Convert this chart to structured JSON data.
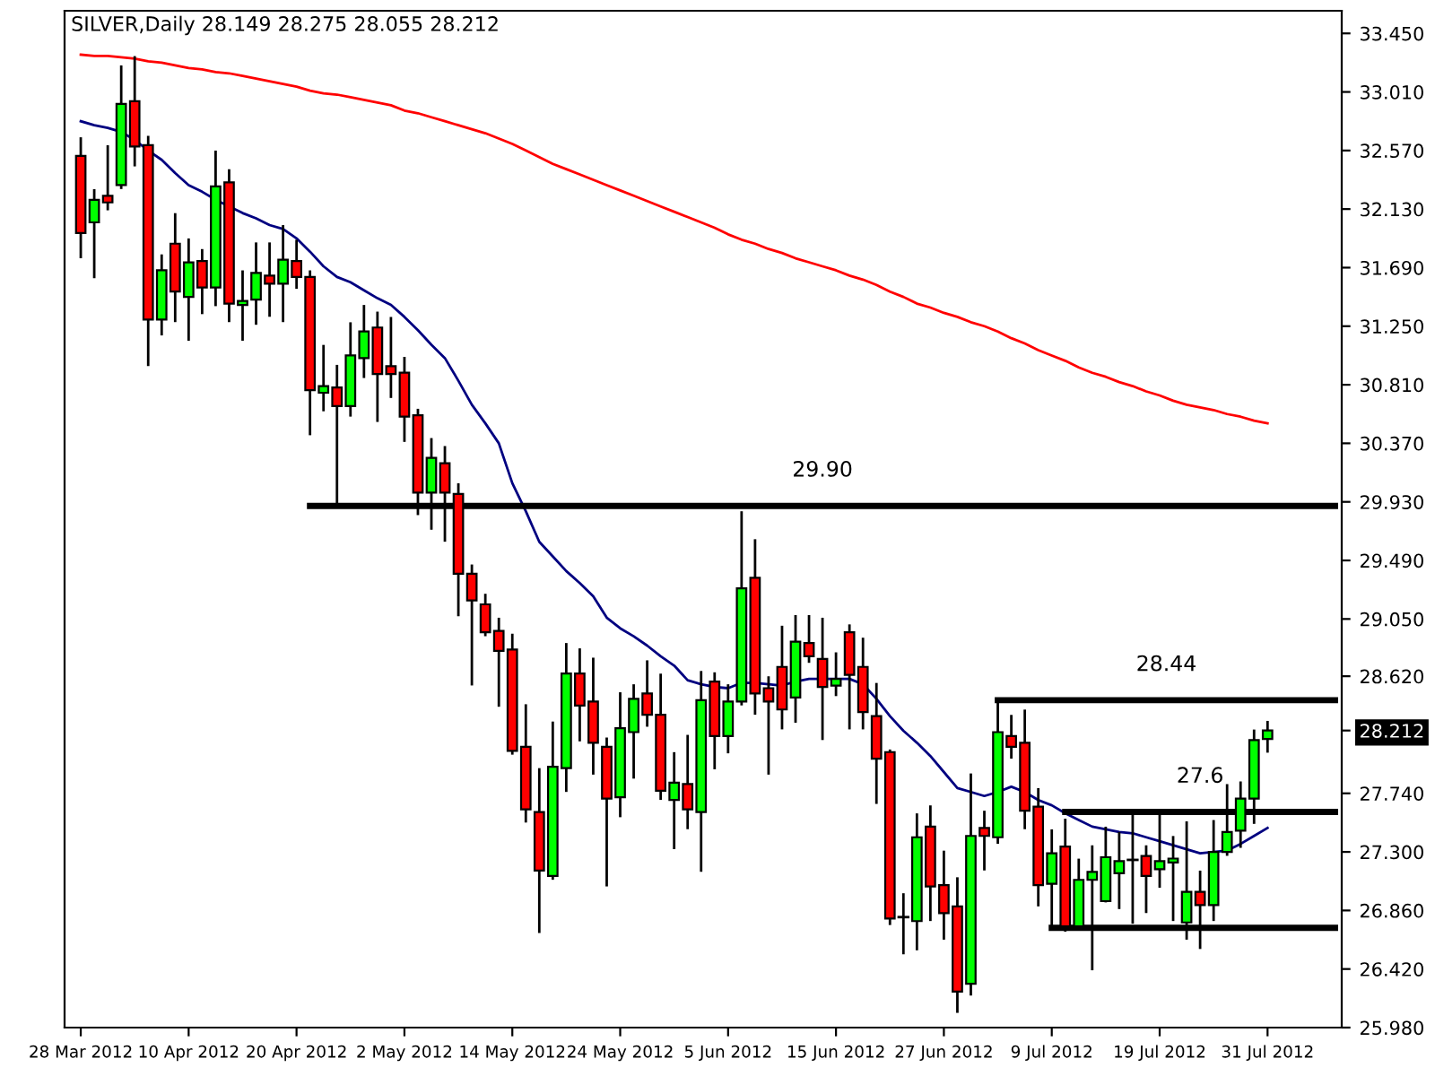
{
  "chart_data": {
    "type": "candlestick",
    "title": "SILVER,Daily 28.149 28.275 28.055 28.212",
    "categories": [
      "28 Mar 2012",
      null,
      null,
      null,
      null,
      null,
      null,
      null,
      "10 Apr 2012",
      null,
      null,
      null,
      null,
      null,
      null,
      null,
      "20 Apr 2012",
      null,
      null,
      null,
      null,
      null,
      null,
      null,
      "2 May 2012",
      null,
      null,
      null,
      null,
      null,
      null,
      null,
      "14 May 2012",
      null,
      null,
      null,
      null,
      null,
      null,
      null,
      "24 May 2012",
      null,
      null,
      null,
      null,
      null,
      null,
      null,
      "5 Jun 2012",
      null,
      null,
      null,
      null,
      null,
      null,
      null,
      "15 Jun 2012",
      null,
      null,
      null,
      null,
      null,
      null,
      null,
      "27 Jun 2012",
      null,
      null,
      null,
      null,
      null,
      null,
      null,
      "9 Jul 2012",
      null,
      null,
      null,
      null,
      null,
      null,
      null,
      "19 Jul 2012",
      null,
      null,
      null,
      null,
      null,
      null,
      null,
      "31 Jul 2012",
      null,
      null,
      null,
      null,
      null
    ],
    "ohlc": [
      [
        32.53,
        32.66,
        31.77,
        31.95
      ],
      [
        32.03,
        32.27,
        31.62,
        32.2
      ],
      [
        32.23,
        32.6,
        32.13,
        32.18
      ],
      [
        32.31,
        33.2,
        32.29,
        32.92
      ],
      [
        32.94,
        33.27,
        32.46,
        32.6
      ],
      [
        32.61,
        32.67,
        30.96,
        31.3
      ],
      [
        31.3,
        31.78,
        31.19,
        31.67
      ],
      [
        31.87,
        32.09,
        31.29,
        31.51
      ],
      [
        31.47,
        31.9,
        31.15,
        31.73
      ],
      [
        31.74,
        31.82,
        31.35,
        31.54
      ],
      [
        31.54,
        32.56,
        31.41,
        32.3
      ],
      [
        32.33,
        32.42,
        31.29,
        31.42
      ],
      [
        31.41,
        31.66,
        31.15,
        31.44
      ],
      [
        31.45,
        31.87,
        31.27,
        31.65
      ],
      [
        31.63,
        31.87,
        31.33,
        31.57
      ],
      [
        31.57,
        32.0,
        31.29,
        31.75
      ],
      [
        31.74,
        31.89,
        31.54,
        31.62
      ],
      [
        31.62,
        31.66,
        30.44,
        30.77
      ],
      [
        30.75,
        31.1,
        30.62,
        30.8
      ],
      [
        30.79,
        30.95,
        29.92,
        30.65
      ],
      [
        30.65,
        31.27,
        30.58,
        31.03
      ],
      [
        31.01,
        31.4,
        30.87,
        31.21
      ],
      [
        31.24,
        31.35,
        30.54,
        30.89
      ],
      [
        30.95,
        31.31,
        30.72,
        30.89
      ],
      [
        30.9,
        31.01,
        30.39,
        30.57
      ],
      [
        30.58,
        30.62,
        29.84,
        30.0
      ],
      [
        30.0,
        30.4,
        29.73,
        30.26
      ],
      [
        30.22,
        30.34,
        29.64,
        30.0
      ],
      [
        29.99,
        30.06,
        29.08,
        29.39
      ],
      [
        29.39,
        29.45,
        28.56,
        29.19
      ],
      [
        29.16,
        29.23,
        28.93,
        28.95
      ],
      [
        28.96,
        29.05,
        28.4,
        28.81
      ],
      [
        28.82,
        28.93,
        28.04,
        28.06
      ],
      [
        28.09,
        28.4,
        27.53,
        27.62
      ],
      [
        27.6,
        27.92,
        26.7,
        27.16
      ],
      [
        27.12,
        28.27,
        27.1,
        27.94
      ],
      [
        27.93,
        28.86,
        27.76,
        28.64
      ],
      [
        28.64,
        28.82,
        28.14,
        28.4
      ],
      [
        28.43,
        28.75,
        27.89,
        28.12
      ],
      [
        28.09,
        28.15,
        27.05,
        27.7
      ],
      [
        27.71,
        28.49,
        27.57,
        28.23
      ],
      [
        28.2,
        28.55,
        27.86,
        28.45
      ],
      [
        28.49,
        28.73,
        28.25,
        28.33
      ],
      [
        28.33,
        28.63,
        27.7,
        27.76
      ],
      [
        27.69,
        28.04,
        27.33,
        27.82
      ],
      [
        27.81,
        28.17,
        27.48,
        27.62
      ],
      [
        27.6,
        28.65,
        27.16,
        28.44
      ],
      [
        28.58,
        28.64,
        27.93,
        28.17
      ],
      [
        28.17,
        28.55,
        28.05,
        28.43
      ],
      [
        28.43,
        29.85,
        28.41,
        29.28
      ],
      [
        29.36,
        29.64,
        28.34,
        28.49
      ],
      [
        28.53,
        28.61,
        27.89,
        28.43
      ],
      [
        28.69,
        28.99,
        28.23,
        28.37
      ],
      [
        28.46,
        29.07,
        28.28,
        28.88
      ],
      [
        28.87,
        29.07,
        28.73,
        28.77
      ],
      [
        28.75,
        29.05,
        28.15,
        28.54
      ],
      [
        28.55,
        28.79,
        28.48,
        28.6
      ],
      [
        28.95,
        29.0,
        28.23,
        28.63
      ],
      [
        28.69,
        28.9,
        28.23,
        28.35
      ],
      [
        28.32,
        28.56,
        27.67,
        28.0
      ],
      [
        28.05,
        28.06,
        26.76,
        26.8
      ],
      [
        26.81,
        26.98,
        26.54,
        26.81
      ],
      [
        26.78,
        27.58,
        26.57,
        27.41
      ],
      [
        27.49,
        27.64,
        26.79,
        27.04
      ],
      [
        27.05,
        27.3,
        26.65,
        26.84
      ],
      [
        26.89,
        27.1,
        26.1,
        26.25
      ],
      [
        26.31,
        27.88,
        26.23,
        27.42
      ],
      [
        27.48,
        27.6,
        27.17,
        27.42
      ],
      [
        27.41,
        28.43,
        27.37,
        28.2
      ],
      [
        28.17,
        28.32,
        28.01,
        28.09
      ],
      [
        28.12,
        28.36,
        27.48,
        27.61
      ],
      [
        27.64,
        27.77,
        26.9,
        27.05
      ],
      [
        27.06,
        27.46,
        26.74,
        27.29
      ],
      [
        27.34,
        27.54,
        26.71,
        26.74
      ],
      [
        26.74,
        27.24,
        26.74,
        27.09
      ],
      [
        27.09,
        27.34,
        26.42,
        27.15
      ],
      [
        26.93,
        27.48,
        26.93,
        27.26
      ],
      [
        27.14,
        27.44,
        26.88,
        27.23
      ],
      [
        27.24,
        27.59,
        26.77,
        27.24
      ],
      [
        27.27,
        27.34,
        26.85,
        27.12
      ],
      [
        27.17,
        27.57,
        27.04,
        27.23
      ],
      [
        27.22,
        27.41,
        26.79,
        27.25
      ],
      [
        26.77,
        27.52,
        26.65,
        27.0
      ],
      [
        27.0,
        27.15,
        26.58,
        26.9
      ],
      [
        26.9,
        27.53,
        26.79,
        27.3
      ],
      [
        27.3,
        27.8,
        27.28,
        27.45
      ],
      [
        27.46,
        27.82,
        27.34,
        27.7
      ],
      [
        27.7,
        28.21,
        27.52,
        28.14
      ],
      [
        28.149,
        28.275,
        28.055,
        28.212
      ],
      null,
      null,
      null,
      null,
      null
    ],
    "colors": [
      "#ff0000",
      "#00ff00",
      "#ff0000",
      "#00ff00",
      "#ff0000",
      "#ff0000",
      "#00ff00",
      "#ff0000",
      "#00ff00",
      "#ff0000",
      "#00ff00",
      "#ff0000",
      "#00ff00",
      "#00ff00",
      "#ff0000",
      "#00ff00",
      "#ff0000",
      "#ff0000",
      "#00ff00",
      "#ff0000",
      "#00ff00",
      "#00ff00",
      "#ff0000",
      "#ff0000",
      "#ff0000",
      "#ff0000",
      "#00ff00",
      "#ff0000",
      "#ff0000",
      "#ff0000",
      "#ff0000",
      "#ff0000",
      "#ff0000",
      "#ff0000",
      "#ff0000",
      "#00ff00",
      "#00ff00",
      "#ff0000",
      "#ff0000",
      "#ff0000",
      "#00ff00",
      "#00ff00",
      "#ff0000",
      "#ff0000",
      "#00ff00",
      "#ff0000",
      "#00ff00",
      "#ff0000",
      "#00ff00",
      "#00ff00",
      "#ff0000",
      "#ff0000",
      "#ff0000",
      "#00ff00",
      "#ff0000",
      "#ff0000",
      "#00ff00",
      "#ff0000",
      "#ff0000",
      "#ff0000",
      "#ff0000",
      "#000000",
      "#00ff00",
      "#ff0000",
      "#ff0000",
      "#ff0000",
      "#00ff00",
      "#ff0000",
      "#00ff00",
      "#ff0000",
      "#ff0000",
      "#ff0000",
      "#00ff00",
      "#ff0000",
      "#00ff00",
      "#00ff00",
      "#00ff00",
      "#00ff00",
      "#000000",
      "#ff0000",
      "#00ff00",
      "#00ff00",
      "#00ff00",
      "#ff0000",
      "#00ff00",
      "#00ff00",
      "#00ff00",
      "#00ff00",
      "#00ff00",
      null,
      null,
      null,
      null,
      null
    ],
    "series": [
      {
        "type": "line",
        "color": "#ff0000",
        "values": [
          33.29,
          33.28,
          33.28,
          33.27,
          33.26,
          33.24,
          33.23,
          33.21,
          33.19,
          33.18,
          33.16,
          33.15,
          33.13,
          33.11,
          33.09,
          33.07,
          33.05,
          33.02,
          33.0,
          32.99,
          32.97,
          32.95,
          32.93,
          32.91,
          32.87,
          32.85,
          32.82,
          32.79,
          32.76,
          32.73,
          32.7,
          32.66,
          32.62,
          32.57,
          32.52,
          32.47,
          32.43,
          32.39,
          32.35,
          32.31,
          32.27,
          32.23,
          32.19,
          32.15,
          32.11,
          32.07,
          32.03,
          31.99,
          31.94,
          31.9,
          31.87,
          31.83,
          31.8,
          31.76,
          31.73,
          31.7,
          31.67,
          31.63,
          31.6,
          31.56,
          31.51,
          31.47,
          31.42,
          31.39,
          31.35,
          31.32,
          31.28,
          31.25,
          31.21,
          31.16,
          31.12,
          31.07,
          31.03,
          30.99,
          30.94,
          30.9,
          30.87,
          30.83,
          30.8,
          30.76,
          30.73,
          30.69,
          30.66,
          30.64,
          30.62,
          30.59,
          30.57,
          30.54,
          30.52,
          null,
          null,
          null,
          null,
          null
        ]
      },
      {
        "type": "line",
        "color": "#000080",
        "values": [
          32.79,
          32.76,
          32.74,
          32.71,
          32.65,
          32.57,
          32.5,
          32.4,
          32.31,
          32.26,
          32.2,
          32.15,
          32.1,
          32.06,
          32.01,
          31.98,
          31.91,
          31.81,
          31.7,
          31.62,
          31.58,
          31.52,
          31.46,
          31.41,
          31.32,
          31.22,
          31.11,
          31.01,
          30.84,
          30.66,
          30.52,
          30.37,
          30.07,
          29.86,
          29.63,
          29.52,
          29.41,
          29.32,
          29.22,
          29.06,
          28.98,
          28.92,
          28.85,
          28.77,
          28.7,
          28.59,
          28.56,
          28.54,
          28.53,
          28.57,
          28.57,
          28.56,
          28.55,
          28.58,
          28.6,
          28.6,
          28.6,
          28.6,
          28.56,
          28.45,
          28.32,
          28.21,
          28.12,
          28.02,
          27.9,
          27.78,
          27.75,
          27.72,
          27.75,
          27.79,
          27.75,
          27.69,
          27.65,
          27.59,
          27.54,
          27.49,
          27.47,
          27.45,
          27.44,
          27.41,
          27.38,
          27.35,
          27.32,
          27.29,
          27.3,
          27.31,
          27.36,
          27.42,
          27.48,
          null,
          null,
          null,
          null,
          null
        ]
      },
      {
        "type": "line",
        "name": "29.90",
        "color": "#000000",
        "values": [
          null,
          null,
          null,
          null,
          null,
          null,
          null,
          null,
          null,
          null,
          null,
          null,
          null,
          null,
          null,
          null,
          null,
          29.9,
          29.9,
          29.9,
          29.9,
          29.9,
          29.9,
          29.9,
          29.9,
          29.9,
          29.9,
          29.9,
          29.9,
          29.9,
          29.9,
          29.9,
          29.9,
          29.9,
          29.9,
          29.9,
          29.9,
          29.9,
          29.9,
          29.9,
          29.9,
          29.9,
          29.9,
          29.9,
          29.9,
          29.9,
          29.9,
          29.9,
          29.9,
          29.9,
          29.9,
          29.9,
          29.9,
          29.9,
          29.9,
          29.9,
          29.9,
          29.9,
          29.9,
          29.9,
          29.9,
          29.9,
          29.9,
          29.9,
          29.9,
          29.9,
          29.9,
          29.9,
          29.9,
          29.9,
          29.9,
          29.9,
          29.9,
          29.9,
          29.9,
          29.9,
          29.9,
          29.9,
          29.9,
          29.9,
          29.9,
          29.9,
          29.9,
          29.9,
          29.9,
          29.9,
          29.9,
          29.9,
          29.9,
          29.9,
          29.9,
          29.9,
          29.9,
          29.9
        ]
      },
      {
        "type": "line",
        "name": "28.44",
        "color": "#000000",
        "values": [
          null,
          null,
          null,
          null,
          null,
          null,
          null,
          null,
          null,
          null,
          null,
          null,
          null,
          null,
          null,
          null,
          null,
          null,
          null,
          null,
          null,
          null,
          null,
          null,
          null,
          null,
          null,
          null,
          null,
          null,
          null,
          null,
          null,
          null,
          null,
          null,
          null,
          null,
          null,
          null,
          null,
          null,
          null,
          null,
          null,
          null,
          null,
          null,
          null,
          null,
          null,
          null,
          null,
          null,
          null,
          null,
          null,
          null,
          null,
          null,
          null,
          null,
          null,
          null,
          null,
          null,
          null,
          null,
          28.44,
          28.44,
          28.44,
          28.44,
          28.44,
          28.44,
          28.44,
          28.44,
          28.44,
          28.44,
          28.44,
          28.44,
          28.44,
          28.44,
          28.44,
          28.44,
          28.44,
          28.44,
          28.44,
          28.44,
          28.44,
          28.44,
          28.44,
          28.44,
          28.44,
          28.44
        ]
      },
      {
        "type": "line",
        "name": "27.6",
        "color": "#000000",
        "values": [
          null,
          null,
          null,
          null,
          null,
          null,
          null,
          null,
          null,
          null,
          null,
          null,
          null,
          null,
          null,
          null,
          null,
          null,
          null,
          null,
          null,
          null,
          null,
          null,
          null,
          null,
          null,
          null,
          null,
          null,
          null,
          null,
          null,
          null,
          null,
          null,
          null,
          null,
          null,
          null,
          null,
          null,
          null,
          null,
          null,
          null,
          null,
          null,
          null,
          null,
          null,
          null,
          null,
          null,
          null,
          null,
          null,
          null,
          null,
          null,
          null,
          null,
          null,
          null,
          null,
          null,
          null,
          null,
          null,
          null,
          null,
          null,
          null,
          27.6,
          27.6,
          27.6,
          27.6,
          27.6,
          27.6,
          27.6,
          27.6,
          27.6,
          27.6,
          27.6,
          27.6,
          27.6,
          27.6,
          27.6,
          27.6,
          27.6,
          27.6,
          27.6,
          27.6,
          27.6
        ]
      },
      {
        "type": "line",
        "color": "#000000",
        "values": [
          null,
          null,
          null,
          null,
          null,
          null,
          null,
          null,
          null,
          null,
          null,
          null,
          null,
          null,
          null,
          null,
          null,
          null,
          null,
          null,
          null,
          null,
          null,
          null,
          null,
          null,
          null,
          null,
          null,
          null,
          null,
          null,
          null,
          null,
          null,
          null,
          null,
          null,
          null,
          null,
          null,
          null,
          null,
          null,
          null,
          null,
          null,
          null,
          null,
          null,
          null,
          null,
          null,
          null,
          null,
          null,
          null,
          null,
          null,
          null,
          null,
          null,
          null,
          null,
          null,
          null,
          null,
          null,
          null,
          null,
          null,
          null,
          26.73,
          26.73,
          26.73,
          26.73,
          26.73,
          26.73,
          26.73,
          26.73,
          26.73,
          26.73,
          26.73,
          26.73,
          26.73,
          26.73,
          26.73,
          26.73,
          26.73,
          26.73,
          26.73,
          26.73,
          26.73,
          26.73
        ]
      }
    ],
    "ylim": [
      25.98,
      33.62
    ],
    "yticks": [
      {
        "value": 25.98,
        "label": "25.980"
      },
      {
        "value": 26.42,
        "label": "26.420"
      },
      {
        "value": 26.86,
        "label": "26.860"
      },
      {
        "value": 27.3,
        "label": "27.300"
      },
      {
        "value": 27.74,
        "label": "27.740"
      },
      {
        "value": 28.212,
        "label": "28.212"
      },
      {
        "value": 28.62,
        "label": "28.620"
      },
      {
        "value": 29.05,
        "label": "29.050"
      },
      {
        "value": 29.49,
        "label": "29.490"
      },
      {
        "value": 29.93,
        "label": "29.930"
      },
      {
        "value": 30.37,
        "label": "30.370"
      },
      {
        "value": 30.81,
        "label": "30.810"
      },
      {
        "value": 31.25,
        "label": "31.250"
      },
      {
        "value": 31.69,
        "label": "31.690"
      },
      {
        "value": 32.13,
        "label": "32.130"
      },
      {
        "value": 32.57,
        "label": "32.570"
      },
      {
        "value": 33.01,
        "label": "33.010"
      },
      {
        "value": 33.45,
        "label": "33.450"
      }
    ]
  }
}
